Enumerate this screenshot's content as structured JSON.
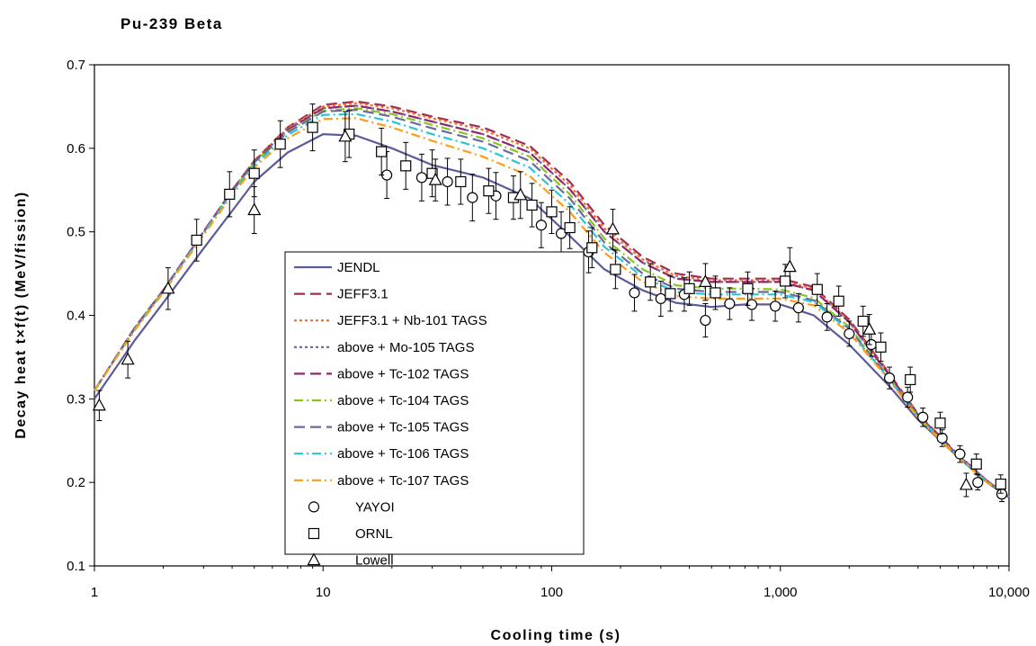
{
  "chart_data": {
    "type": "line",
    "title": "Pu-239 Beta",
    "xlabel": "Cooling time (s)",
    "ylabel": "Decay heat   t×f(t)   (MeV/fission)",
    "x_scale": "log",
    "xlim": [
      1,
      10000
    ],
    "ylim": [
      0.1,
      0.7
    ],
    "x_ticks": [
      1,
      10,
      100,
      1000,
      10000
    ],
    "x_tick_labels": [
      "1",
      "10",
      "100",
      "1,000",
      "10,000"
    ],
    "y_ticks": [
      0.1,
      0.2,
      0.3,
      0.4,
      0.5,
      0.6,
      0.7
    ],
    "y_tick_labels": [
      "0.1",
      "0.2",
      "0.3",
      "0.4",
      "0.5",
      "0.6",
      "0.7"
    ],
    "grid": false,
    "legend_position": "center-left",
    "series": [
      {
        "name": "JENDL",
        "kind": "line",
        "color": "#5b5b9a",
        "dash": "solid",
        "x": [
          1,
          1.5,
          2,
          3,
          4,
          5,
          7,
          10,
          14,
          20,
          30,
          50,
          80,
          120,
          170,
          250,
          350,
          500,
          700,
          1000,
          1400,
          2000,
          3000,
          4000,
          6000,
          8000,
          10000
        ],
        "y": [
          0.3,
          0.37,
          0.415,
          0.48,
          0.525,
          0.56,
          0.595,
          0.617,
          0.615,
          0.6,
          0.58,
          0.565,
          0.54,
          0.495,
          0.455,
          0.43,
          0.415,
          0.41,
          0.413,
          0.413,
          0.4,
          0.365,
          0.315,
          0.275,
          0.23,
          0.2,
          0.182
        ]
      },
      {
        "name": "JEFF3.1",
        "kind": "line",
        "color": "#9b2d5f",
        "dash": "12,6",
        "x": [
          1,
          1.5,
          2,
          3,
          4,
          5,
          7,
          10,
          14,
          20,
          30,
          50,
          80,
          120,
          170,
          250,
          350,
          500,
          700,
          1000,
          1400,
          2000,
          3000,
          4000,
          6000,
          8000,
          10000
        ],
        "y": [
          0.31,
          0.385,
          0.43,
          0.5,
          0.55,
          0.585,
          0.625,
          0.652,
          0.656,
          0.65,
          0.638,
          0.625,
          0.603,
          0.56,
          0.508,
          0.47,
          0.45,
          0.444,
          0.444,
          0.444,
          0.434,
          0.395,
          0.33,
          0.282,
          0.233,
          0.202,
          0.183
        ]
      },
      {
        "name": "JEFF3.1 + Nb-101 TAGS",
        "kind": "line",
        "color": "#ff6a1a",
        "dash": "3,3",
        "x": [
          1,
          1.5,
          2,
          3,
          4,
          5,
          7,
          10,
          14,
          20,
          30,
          50,
          80,
          120,
          170,
          250,
          350,
          500,
          700,
          1000,
          1400,
          2000,
          3000,
          4000,
          6000,
          8000,
          10000
        ],
        "y": [
          0.31,
          0.385,
          0.43,
          0.5,
          0.55,
          0.585,
          0.624,
          0.65,
          0.654,
          0.648,
          0.636,
          0.622,
          0.6,
          0.556,
          0.504,
          0.467,
          0.447,
          0.442,
          0.442,
          0.442,
          0.432,
          0.393,
          0.329,
          0.281,
          0.232,
          0.202,
          0.183
        ]
      },
      {
        "name": "above + Mo-105 TAGS",
        "kind": "line",
        "color": "#6b5fb0",
        "dash": "3,3",
        "x": [
          1,
          1.5,
          2,
          3,
          4,
          5,
          7,
          10,
          14,
          20,
          30,
          50,
          80,
          120,
          170,
          250,
          350,
          500,
          700,
          1000,
          1400,
          2000,
          3000,
          4000,
          6000,
          8000,
          10000
        ],
        "y": [
          0.31,
          0.385,
          0.43,
          0.5,
          0.549,
          0.584,
          0.622,
          0.648,
          0.651,
          0.644,
          0.632,
          0.617,
          0.595,
          0.551,
          0.5,
          0.463,
          0.444,
          0.44,
          0.44,
          0.44,
          0.43,
          0.392,
          0.328,
          0.281,
          0.232,
          0.202,
          0.183
        ]
      },
      {
        "name": "above + Tc-102 TAGS",
        "kind": "line",
        "color": "#8e2a6a",
        "dash": "12,6",
        "x": [
          1,
          1.5,
          2,
          3,
          4,
          5,
          7,
          10,
          14,
          20,
          30,
          50,
          80,
          120,
          170,
          250,
          350,
          500,
          700,
          1000,
          1400,
          2000,
          3000,
          4000,
          6000,
          8000,
          10000
        ],
        "y": [
          0.31,
          0.385,
          0.43,
          0.5,
          0.549,
          0.584,
          0.622,
          0.648,
          0.651,
          0.644,
          0.632,
          0.617,
          0.595,
          0.551,
          0.5,
          0.463,
          0.444,
          0.44,
          0.44,
          0.44,
          0.43,
          0.392,
          0.328,
          0.281,
          0.232,
          0.202,
          0.183
        ]
      },
      {
        "name": "above + Tc-104 TAGS",
        "kind": "line",
        "color": "#8dc21f",
        "dash": "10,4,2,4",
        "x": [
          1,
          1.5,
          2,
          3,
          4,
          5,
          7,
          10,
          14,
          20,
          30,
          50,
          80,
          120,
          170,
          250,
          350,
          500,
          700,
          1000,
          1400,
          2000,
          3000,
          4000,
          6000,
          8000,
          10000
        ],
        "y": [
          0.31,
          0.384,
          0.429,
          0.499,
          0.548,
          0.583,
          0.62,
          0.645,
          0.648,
          0.641,
          0.628,
          0.612,
          0.59,
          0.545,
          0.492,
          0.455,
          0.436,
          0.432,
          0.432,
          0.431,
          0.421,
          0.386,
          0.325,
          0.279,
          0.231,
          0.201,
          0.183
        ]
      },
      {
        "name": "above + Tc-105 TAGS",
        "kind": "line",
        "color": "#6a6aa0",
        "dash": "12,6",
        "x": [
          1,
          1.5,
          2,
          3,
          4,
          5,
          7,
          10,
          14,
          20,
          30,
          50,
          80,
          120,
          170,
          250,
          350,
          500,
          700,
          1000,
          1400,
          2000,
          3000,
          4000,
          6000,
          8000,
          10000
        ],
        "y": [
          0.31,
          0.384,
          0.429,
          0.499,
          0.548,
          0.583,
          0.619,
          0.644,
          0.646,
          0.638,
          0.624,
          0.608,
          0.585,
          0.54,
          0.487,
          0.45,
          0.432,
          0.428,
          0.428,
          0.428,
          0.418,
          0.384,
          0.324,
          0.278,
          0.231,
          0.201,
          0.183
        ]
      },
      {
        "name": "above + Tc-106 TAGS",
        "kind": "line",
        "color": "#28c5d6",
        "dash": "10,4,2,4",
        "x": [
          1,
          1.5,
          2,
          3,
          4,
          5,
          7,
          10,
          14,
          20,
          30,
          50,
          80,
          120,
          170,
          250,
          350,
          500,
          700,
          1000,
          1400,
          2000,
          3000,
          4000,
          6000,
          8000,
          10000
        ],
        "y": [
          0.31,
          0.383,
          0.428,
          0.498,
          0.546,
          0.58,
          0.616,
          0.64,
          0.641,
          0.632,
          0.617,
          0.6,
          0.577,
          0.533,
          0.482,
          0.446,
          0.428,
          0.425,
          0.425,
          0.425,
          0.416,
          0.382,
          0.323,
          0.278,
          0.231,
          0.201,
          0.183
        ]
      },
      {
        "name": "above + Tc-107 TAGS",
        "kind": "line",
        "color": "#ff9b1a",
        "dash": "10,4,2,4",
        "x": [
          1,
          1.5,
          2,
          3,
          4,
          5,
          7,
          10,
          14,
          20,
          30,
          50,
          80,
          120,
          170,
          250,
          350,
          500,
          700,
          1000,
          1400,
          2000,
          3000,
          4000,
          6000,
          8000,
          10000
        ],
        "y": [
          0.31,
          0.382,
          0.427,
          0.496,
          0.544,
          0.577,
          0.612,
          0.635,
          0.636,
          0.625,
          0.609,
          0.59,
          0.567,
          0.524,
          0.475,
          0.44,
          0.423,
          0.42,
          0.42,
          0.42,
          0.412,
          0.379,
          0.322,
          0.277,
          0.23,
          0.2,
          0.183
        ]
      },
      {
        "name": "YAYOI",
        "kind": "points",
        "marker": "circle",
        "x": [
          19,
          27,
          35,
          45,
          57,
          90,
          110,
          145,
          230,
          300,
          380,
          470,
          600,
          750,
          950,
          1200,
          1600,
          2000,
          2500,
          3000,
          3600,
          4200,
          5100,
          6100,
          7300,
          9300
        ],
        "y": [
          0.568,
          0.565,
          0.56,
          0.541,
          0.543,
          0.508,
          0.498,
          0.476,
          0.427,
          0.42,
          0.425,
          0.394,
          0.414,
          0.413,
          0.411,
          0.409,
          0.398,
          0.378,
          0.365,
          0.325,
          0.302,
          0.278,
          0.253,
          0.234,
          0.2,
          0.186
        ],
        "err": [
          0.028,
          0.028,
          0.028,
          0.028,
          0.028,
          0.027,
          0.026,
          0.025,
          0.022,
          0.021,
          0.02,
          0.02,
          0.019,
          0.019,
          0.018,
          0.017,
          0.016,
          0.015,
          0.014,
          0.013,
          0.012,
          0.011,
          0.01,
          0.01,
          0.009,
          0.009
        ]
      },
      {
        "name": "ORNL",
        "kind": "points",
        "marker": "square",
        "x": [
          2.8,
          3.9,
          5,
          6.5,
          9,
          13,
          18,
          23,
          30,
          40,
          53,
          68,
          82,
          100,
          120,
          150,
          190,
          270,
          330,
          400,
          520,
          720,
          1050,
          1450,
          1800,
          2300,
          2750,
          3700,
          5000,
          7200,
          9200
        ],
        "y": [
          0.49,
          0.545,
          0.57,
          0.605,
          0.625,
          0.617,
          0.596,
          0.579,
          0.57,
          0.56,
          0.549,
          0.541,
          0.532,
          0.524,
          0.505,
          0.481,
          0.455,
          0.44,
          0.426,
          0.432,
          0.427,
          0.432,
          0.441,
          0.431,
          0.417,
          0.393,
          0.362,
          0.323,
          0.271,
          0.222,
          0.198
        ],
        "err": [
          0.025,
          0.027,
          0.028,
          0.028,
          0.028,
          0.028,
          0.028,
          0.028,
          0.028,
          0.027,
          0.027,
          0.026,
          0.026,
          0.026,
          0.025,
          0.024,
          0.023,
          0.022,
          0.021,
          0.02,
          0.02,
          0.02,
          0.02,
          0.019,
          0.018,
          0.018,
          0.017,
          0.015,
          0.013,
          0.012,
          0.011
        ]
      },
      {
        "name": "Lowell",
        "kind": "points",
        "marker": "triangle",
        "x": [
          1.05,
          1.4,
          2.1,
          5,
          12.5,
          31,
          73,
          185,
          470,
          1100,
          2450,
          6500
        ],
        "y": [
          0.292,
          0.347,
          0.432,
          0.526,
          0.614,
          0.562,
          0.544,
          0.503,
          0.44,
          0.458,
          0.383,
          0.197
        ],
        "err": [
          0.018,
          0.022,
          0.025,
          0.028,
          0.03,
          0.025,
          0.028,
          0.024,
          0.022,
          0.023,
          0.018,
          0.014
        ]
      }
    ]
  }
}
